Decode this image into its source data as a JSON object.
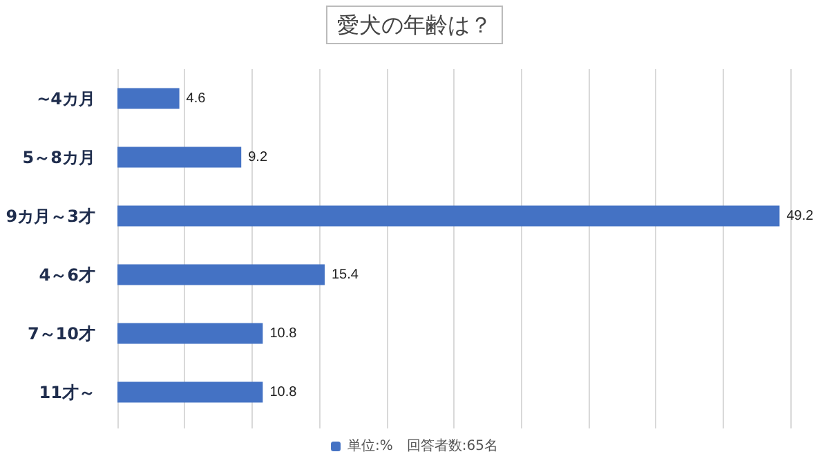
{
  "chart_data": {
    "type": "bar",
    "orientation": "horizontal",
    "title": "愛犬の年齢は？",
    "categories": [
      "~4カ月",
      "5～8カ月",
      "9カ月～3才",
      "4～6才",
      "7～10才",
      "11才～"
    ],
    "series": [
      {
        "name": "単位:%　回答者数:65名",
        "color": "#4472c4",
        "values": [
          4.6,
          9.2,
          49.2,
          15.4,
          10.8,
          10.8
        ]
      }
    ],
    "xlim": [
      0,
      50
    ],
    "xticks": [
      {
        "value": 0,
        "label": null
      },
      {
        "value": 5,
        "label": null
      },
      {
        "value": 10,
        "label": null
      },
      {
        "value": 15,
        "label": null
      },
      {
        "value": 20,
        "label": null
      },
      {
        "value": 25,
        "label": null
      },
      {
        "value": 30,
        "label": null
      },
      {
        "value": 35,
        "label": null
      },
      {
        "value": 40,
        "label": null
      },
      {
        "value": 45,
        "label": null
      },
      {
        "value": 50,
        "label": null
      }
    ],
    "tick_labels": "y",
    "grid": "x",
    "legend": "bottom",
    "data_labels": true
  }
}
